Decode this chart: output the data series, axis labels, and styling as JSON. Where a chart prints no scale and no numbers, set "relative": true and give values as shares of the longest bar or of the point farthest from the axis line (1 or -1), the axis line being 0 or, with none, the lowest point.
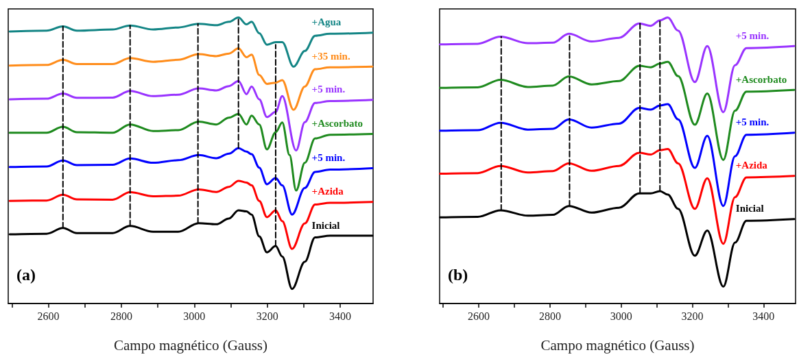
{
  "chart_data": [
    {
      "type": "line",
      "xlabel": "Campo magnético (Gauss)",
      "annotations": [
        "(a)"
      ],
      "relative": true,
      "tick_labels": "x",
      "marker": "none",
      "line_style": "solid",
      "xlim": [
        2490,
        3490
      ],
      "xticks": [
        {
          "value": 2500,
          "label": null
        },
        2600,
        {
          "value": 2700,
          "label": null
        },
        2800,
        {
          "value": 2900,
          "label": null
        },
        3000,
        {
          "value": 3100,
          "label": null
        },
        3200,
        {
          "value": 3300,
          "label": null
        },
        3400
      ],
      "series": [
        {
          "name": "Inicial",
          "color": "#000000",
          "x": [
            2494,
            2595,
            2640,
            2678,
            2776,
            2824,
            2887,
            2956,
            3012,
            3060,
            3095,
            3121,
            3143,
            3157,
            3178,
            3199,
            3223,
            3241,
            3268,
            3303,
            3331,
            3372,
            3488
          ],
          "values": [
            0.242,
            0.244,
            0.264,
            0.246,
            0.246,
            0.271,
            0.251,
            0.251,
            0.281,
            0.277,
            0.297,
            0.326,
            0.322,
            0.311,
            0.235,
            0.179,
            0.201,
            0.164,
            0.051,
            0.146,
            0.231,
            0.237,
            0.237
          ]
        },
        {
          "name": "+Azida",
          "color": "#ff0000",
          "x": [
            2494,
            2595,
            2640,
            2678,
            2776,
            2824,
            2887,
            2956,
            3012,
            3060,
            3095,
            3121,
            3143,
            3157,
            3178,
            3199,
            3223,
            3241,
            3268,
            3303,
            3331,
            3372,
            3488
          ],
          "values": [
            0.359,
            0.36,
            0.38,
            0.364,
            0.363,
            0.389,
            0.375,
            0.377,
            0.399,
            0.39,
            0.408,
            0.429,
            0.423,
            0.413,
            0.359,
            0.302,
            0.326,
            0.288,
            0.191,
            0.28,
            0.346,
            0.352,
            0.355
          ]
        },
        {
          "name": "+5 min.",
          "color": "#0000ff",
          "x": [
            2494,
            2595,
            2640,
            2678,
            2776,
            2824,
            2887,
            2956,
            3012,
            3060,
            3095,
            3121,
            3143,
            3157,
            3178,
            3199,
            3223,
            3241,
            3268,
            3303,
            3331,
            3372,
            3488
          ],
          "values": [
            0.477,
            0.479,
            0.5,
            0.484,
            0.485,
            0.507,
            0.492,
            0.501,
            0.519,
            0.508,
            0.524,
            0.543,
            0.531,
            0.522,
            0.475,
            0.417,
            0.439,
            0.413,
            0.311,
            0.404,
            0.46,
            0.468,
            0.473
          ]
        },
        {
          "name": "+Ascorbato",
          "color": "#1e8a1e",
          "x": [
            2494,
            2595,
            2640,
            2678,
            2776,
            2824,
            2887,
            2956,
            3012,
            3060,
            3095,
            3121,
            3143,
            3157,
            3178,
            3199,
            3223,
            3241,
            3261,
            3279,
            3303,
            3331,
            3372,
            3488
          ],
          "values": [
            0.597,
            0.597,
            0.618,
            0.599,
            0.597,
            0.626,
            0.603,
            0.606,
            0.636,
            0.626,
            0.65,
            0.663,
            0.626,
            0.657,
            0.626,
            0.539,
            0.599,
            0.633,
            0.519,
            0.395,
            0.492,
            0.577,
            0.59,
            0.593
          ]
        },
        {
          "name": "+5 min.",
          "color": "#9933ff",
          "x": [
            2494,
            2595,
            2640,
            2678,
            2776,
            2824,
            2887,
            2956,
            3012,
            3060,
            3095,
            3121,
            3143,
            3157,
            3178,
            3199,
            3223,
            3241,
            3279,
            3303,
            3331,
            3372,
            3488
          ],
          "values": [
            0.714,
            0.716,
            0.734,
            0.719,
            0.72,
            0.743,
            0.725,
            0.73,
            0.752,
            0.745,
            0.76,
            0.778,
            0.732,
            0.759,
            0.714,
            0.652,
            0.67,
            0.725,
            0.535,
            0.634,
            0.701,
            0.708,
            0.712
          ]
        },
        {
          "name": "+35 min.",
          "color": "#ff8c1a",
          "x": [
            2494,
            2595,
            2640,
            2678,
            2776,
            2824,
            2887,
            2956,
            3012,
            3060,
            3095,
            3121,
            3143,
            3157,
            3178,
            3199,
            3223,
            3241,
            3272,
            3303,
            3331,
            3372,
            3488
          ],
          "values": [
            0.832,
            0.834,
            0.852,
            0.837,
            0.837,
            0.858,
            0.845,
            0.852,
            0.872,
            0.865,
            0.874,
            0.892,
            0.861,
            0.87,
            0.799,
            0.768,
            0.772,
            0.781,
            0.677,
            0.759,
            0.819,
            0.826,
            0.828
          ]
        },
        {
          "name": "+Agua",
          "color": "#138585",
          "x": [
            2494,
            2595,
            2640,
            2678,
            2776,
            2824,
            2887,
            2956,
            3012,
            3060,
            3095,
            3121,
            3143,
            3157,
            3178,
            3199,
            3223,
            3241,
            3272,
            3303,
            3331,
            3372,
            3488
          ],
          "values": [
            0.951,
            0.954,
            0.969,
            0.954,
            0.958,
            0.972,
            0.958,
            0.965,
            0.978,
            0.973,
            0.985,
            1.0,
            0.976,
            0.985,
            0.945,
            0.905,
            0.914,
            0.914,
            0.828,
            0.883,
            0.936,
            0.943,
            0.947
          ]
        },
        {
          "color": "#000000",
          "line_style": "dashed",
          "x": [
            2640,
            2640
          ],
          "values": [
            0.264,
            0.969
          ]
        },
        {
          "color": "#000000",
          "line_style": "dashed",
          "x": [
            2824,
            2824
          ],
          "values": [
            0.271,
            0.972
          ]
        },
        {
          "color": "#000000",
          "line_style": "dashed",
          "x": [
            3010,
            3010
          ],
          "values": [
            0.281,
            0.978
          ]
        },
        {
          "color": "#000000",
          "line_style": "dashed",
          "x": [
            3121,
            3121
          ],
          "values": [
            0.543,
            1.0
          ]
        },
        {
          "color": "#000000",
          "line_style": "dashed",
          "x": [
            3223,
            3223
          ],
          "values": [
            0.201,
            0.905
          ]
        }
      ]
    },
    {
      "type": "line",
      "xlabel": "Campo magnético (Gauss)",
      "annotations": [
        "(b)"
      ],
      "relative": true,
      "tick_labels": "x",
      "marker": "none",
      "line_style": "solid",
      "xlim": [
        2490,
        3490
      ],
      "xticks": [
        {
          "value": 2500,
          "label": null
        },
        2600,
        {
          "value": 2700,
          "label": null
        },
        2800,
        {
          "value": 2900,
          "label": null
        },
        3000,
        {
          "value": 3100,
          "label": null
        },
        3200,
        {
          "value": 3300,
          "label": null
        },
        3400
      ],
      "series": [
        {
          "name": "Inicial",
          "color": "#000000",
          "x": [
            2491,
            2597,
            2661,
            2738,
            2808,
            2853,
            2917,
            2994,
            3051,
            3083,
            3109,
            3131,
            3160,
            3207,
            3242,
            3287,
            3320,
            3352,
            3486
          ],
          "values": [
            0.301,
            0.303,
            0.326,
            0.307,
            0.31,
            0.341,
            0.318,
            0.335,
            0.385,
            0.385,
            0.393,
            0.381,
            0.331,
            0.167,
            0.255,
            0.059,
            0.213,
            0.289,
            0.295
          ]
        },
        {
          "name": "+Azida",
          "color": "#ff0000",
          "x": [
            2491,
            2597,
            2661,
            2738,
            2808,
            2853,
            2917,
            2994,
            3051,
            3083,
            3109,
            3131,
            3160,
            3207,
            3242,
            3287,
            3320,
            3352,
            3486
          ],
          "values": [
            0.454,
            0.456,
            0.481,
            0.458,
            0.463,
            0.49,
            0.464,
            0.481,
            0.527,
            0.521,
            0.536,
            0.54,
            0.49,
            0.331,
            0.438,
            0.209,
            0.372,
            0.441,
            0.446
          ]
        },
        {
          "name": "+5 min.",
          "color": "#0000ff",
          "x": [
            2491,
            2597,
            2661,
            2738,
            2808,
            2853,
            2917,
            2994,
            3051,
            3083,
            3109,
            3131,
            3160,
            3207,
            3242,
            3287,
            3320,
            3352,
            3486
          ],
          "values": [
            0.604,
            0.606,
            0.632,
            0.608,
            0.611,
            0.644,
            0.615,
            0.629,
            0.684,
            0.678,
            0.692,
            0.697,
            0.644,
            0.474,
            0.586,
            0.341,
            0.515,
            0.59,
            0.597
          ]
        },
        {
          "name": "+Ascorbato",
          "color": "#1e8a1e",
          "x": [
            2491,
            2597,
            2661,
            2738,
            2808,
            2853,
            2917,
            2994,
            3051,
            3083,
            3109,
            3131,
            3160,
            3207,
            3242,
            3287,
            3320,
            3352,
            3486
          ],
          "values": [
            0.754,
            0.756,
            0.782,
            0.757,
            0.762,
            0.794,
            0.766,
            0.778,
            0.831,
            0.826,
            0.839,
            0.845,
            0.795,
            0.625,
            0.734,
            0.502,
            0.674,
            0.741,
            0.747
          ]
        },
        {
          "name": "+5 min.",
          "color": "#9933ff",
          "x": [
            2491,
            2597,
            2661,
            2738,
            2808,
            2853,
            2917,
            2994,
            3051,
            3083,
            3109,
            3131,
            3160,
            3207,
            3242,
            3287,
            3320,
            3352,
            3486
          ],
          "values": [
            0.906,
            0.908,
            0.933,
            0.91,
            0.912,
            0.943,
            0.916,
            0.929,
            0.979,
            0.971,
            0.99,
            1.0,
            0.954,
            0.774,
            0.9,
            0.669,
            0.833,
            0.893,
            0.9
          ]
        },
        {
          "color": "#000000",
          "line_style": "dashed",
          "x": [
            2663,
            2663
          ],
          "values": [
            0.326,
            0.933
          ]
        },
        {
          "color": "#000000",
          "line_style": "dashed",
          "x": [
            2855,
            2855
          ],
          "values": [
            0.341,
            0.943
          ]
        },
        {
          "color": "#000000",
          "line_style": "dashed",
          "x": [
            3053,
            3053
          ],
          "values": [
            0.385,
            0.979
          ]
        },
        {
          "color": "#000000",
          "line_style": "dashed",
          "x": [
            3109,
            3109
          ],
          "values": [
            0.393,
            0.99
          ]
        }
      ]
    }
  ]
}
